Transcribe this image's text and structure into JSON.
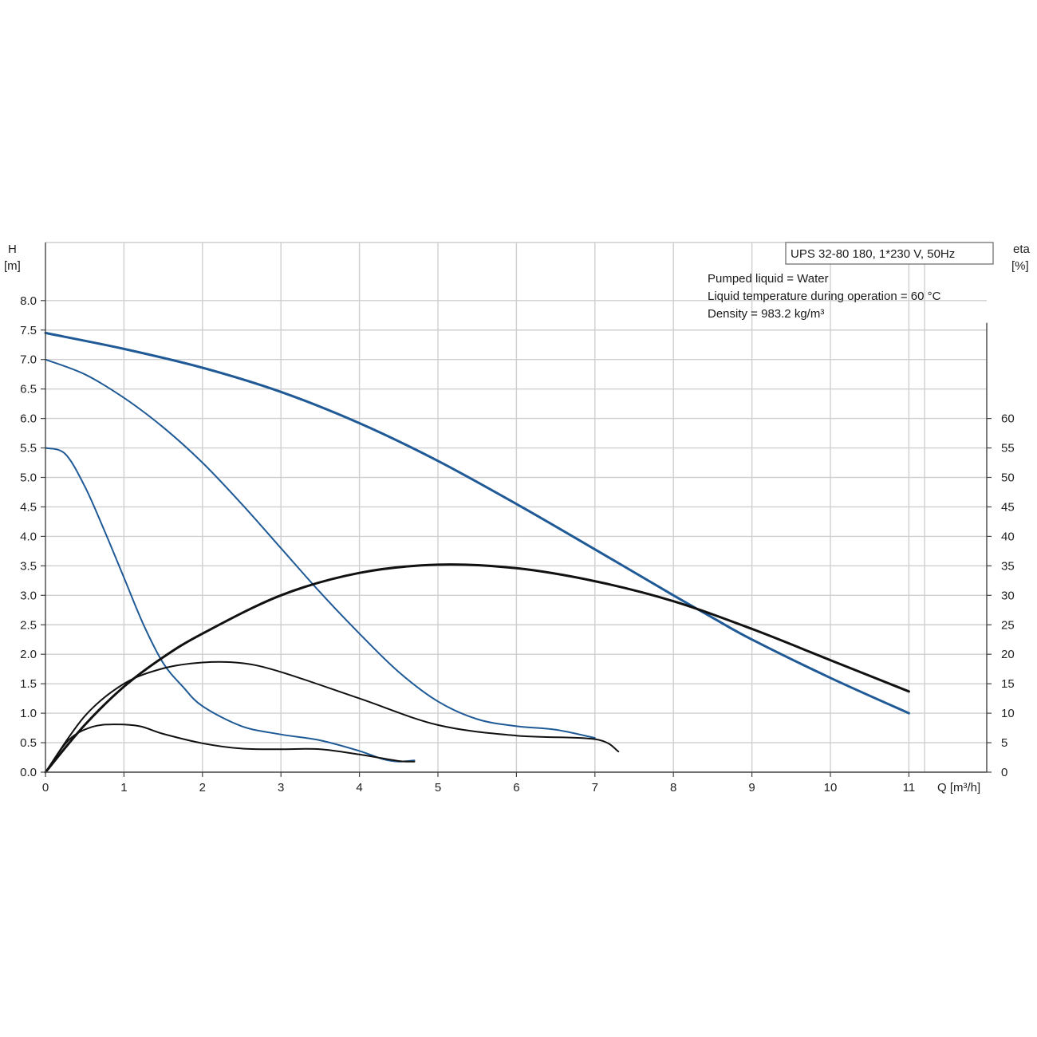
{
  "chart_data": {
    "type": "line",
    "title": "UPS 32-80 180, 1*230 V, 50Hz",
    "notes": [
      "Pumped liquid = Water",
      "Liquid temperature during operation = 60 °C",
      "Density = 983.2 kg/m³"
    ],
    "xlabel": "Q [m³/h]",
    "ylabel_left": [
      "H",
      "[m]"
    ],
    "ylabel_right": [
      "eta",
      "[%]"
    ],
    "xlim": [
      0,
      11.2
    ],
    "ylim_left": [
      0,
      8.9
    ],
    "ylim_right": [
      0,
      89
    ],
    "x_ticks": [
      "0",
      "1",
      "2",
      "3",
      "4",
      "5",
      "6",
      "7",
      "8",
      "9",
      "10",
      "11"
    ],
    "y_ticks_left": [
      "0.0",
      "0.5",
      "1.0",
      "1.5",
      "2.0",
      "2.5",
      "3.0",
      "3.5",
      "4.0",
      "4.5",
      "5.0",
      "5.5",
      "6.0",
      "6.5",
      "7.0",
      "7.5",
      "8.0"
    ],
    "y_ticks_right": [
      "0",
      "5",
      "10",
      "15",
      "20",
      "25",
      "30",
      "35",
      "40",
      "45",
      "50",
      "55",
      "60"
    ],
    "grid": true,
    "colors": {
      "head": "#1f5a96",
      "eta": "#111111",
      "grid": "#cfcfcf"
    },
    "series": [
      {
        "axis": "left",
        "color": "#1f5a96",
        "width": 3,
        "points": [
          [
            0,
            7.45
          ],
          [
            1,
            7.18
          ],
          [
            2,
            6.86
          ],
          [
            3,
            6.45
          ],
          [
            4,
            5.92
          ],
          [
            5,
            5.28
          ],
          [
            6,
            4.55
          ],
          [
            7,
            3.78
          ],
          [
            8,
            3.0
          ],
          [
            8.5,
            2.62
          ],
          [
            9,
            2.25
          ],
          [
            10,
            1.6
          ],
          [
            11,
            1.0
          ]
        ]
      },
      {
        "axis": "left",
        "color": "#1f5a96",
        "width": 2,
        "points": [
          [
            0,
            7.0
          ],
          [
            0.5,
            6.75
          ],
          [
            1,
            6.35
          ],
          [
            1.5,
            5.85
          ],
          [
            2,
            5.25
          ],
          [
            2.5,
            4.55
          ],
          [
            3,
            3.8
          ],
          [
            3.5,
            3.05
          ],
          [
            4,
            2.35
          ],
          [
            4.5,
            1.7
          ],
          [
            5,
            1.2
          ],
          [
            5.5,
            0.9
          ],
          [
            6,
            0.78
          ],
          [
            6.5,
            0.72
          ],
          [
            7,
            0.58
          ]
        ]
      },
      {
        "axis": "left",
        "color": "#1f5a96",
        "width": 2,
        "points": [
          [
            0,
            5.5
          ],
          [
            0.25,
            5.4
          ],
          [
            0.5,
            4.85
          ],
          [
            0.75,
            4.1
          ],
          [
            1,
            3.3
          ],
          [
            1.25,
            2.5
          ],
          [
            1.5,
            1.85
          ],
          [
            1.75,
            1.45
          ],
          [
            2,
            1.12
          ],
          [
            2.5,
            0.78
          ],
          [
            3,
            0.64
          ],
          [
            3.5,
            0.54
          ],
          [
            4,
            0.36
          ],
          [
            4.3,
            0.22
          ],
          [
            4.5,
            0.18
          ],
          [
            4.7,
            0.2
          ]
        ]
      },
      {
        "axis": "right",
        "color": "#111111",
        "width": 3,
        "points": [
          [
            0,
            0
          ],
          [
            0.5,
            8
          ],
          [
            1,
            14.5
          ],
          [
            1.5,
            19.5
          ],
          [
            2,
            23.5
          ],
          [
            3,
            30
          ],
          [
            4,
            33.8
          ],
          [
            5,
            35.2
          ],
          [
            6,
            34.6
          ],
          [
            7,
            32.4
          ],
          [
            8,
            29
          ],
          [
            9,
            24.3
          ],
          [
            10,
            19
          ],
          [
            11,
            13.7
          ]
        ]
      },
      {
        "axis": "right",
        "color": "#111111",
        "width": 2,
        "points": [
          [
            0,
            0
          ],
          [
            0.5,
            9.5
          ],
          [
            1,
            15
          ],
          [
            1.5,
            17.6
          ],
          [
            2,
            18.6
          ],
          [
            2.5,
            18.5
          ],
          [
            3,
            17
          ],
          [
            4,
            12.5
          ],
          [
            5,
            8
          ],
          [
            6,
            6.2
          ],
          [
            7,
            5.6
          ],
          [
            7.3,
            3.5
          ]
        ]
      },
      {
        "axis": "right",
        "color": "#111111",
        "width": 2,
        "points": [
          [
            0,
            0
          ],
          [
            0.3,
            5.5
          ],
          [
            0.6,
            7.7
          ],
          [
            0.9,
            8.1
          ],
          [
            1.2,
            7.8
          ],
          [
            1.5,
            6.5
          ],
          [
            2,
            4.9
          ],
          [
            2.5,
            4.0
          ],
          [
            3,
            3.9
          ],
          [
            3.5,
            3.9
          ],
          [
            4,
            3.0
          ],
          [
            4.5,
            1.9
          ],
          [
            4.7,
            1.8
          ]
        ]
      }
    ]
  }
}
